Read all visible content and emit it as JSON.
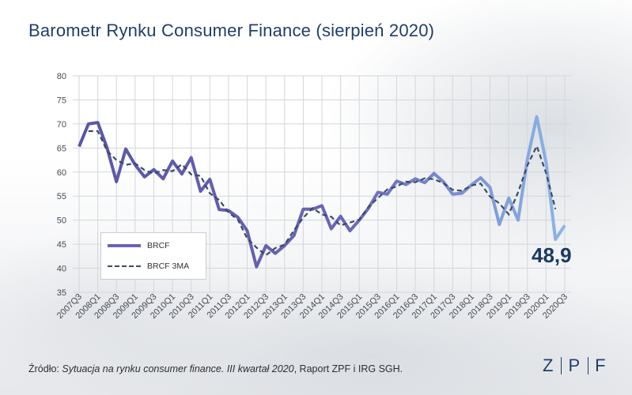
{
  "title": "Barometr Rynku Consumer Finance (sierpień 2020)",
  "source": {
    "prefix": "Źródło: ",
    "italic": "Sytuacja na rynku consumer finance. III kwartał 2020",
    "suffix": ", Raport ZPF i IRG SGH."
  },
  "logo": {
    "letters": [
      "Z",
      "P",
      "F"
    ]
  },
  "callout": "48,9",
  "colors": {
    "brcf_start": "#5b55a8",
    "brcf_end": "#8ab6e8",
    "ma": "#3c4b64",
    "title": "#1f3e6a",
    "grid": "#d3d6db"
  },
  "chart_data": {
    "type": "line",
    "ylim": [
      35,
      80
    ],
    "yticks": [
      35,
      40,
      45,
      50,
      55,
      60,
      65,
      70,
      75,
      80
    ],
    "x": [
      "2007Q3",
      "2007Q4",
      "2008Q1",
      "2008Q2",
      "2008Q3",
      "2008Q4",
      "2009Q1",
      "2009Q2",
      "2009Q3",
      "2009Q4",
      "2010Q1",
      "2010Q2",
      "2010Q3",
      "2010Q4",
      "2011Q1",
      "2011Q2",
      "2011Q3",
      "2011Q4",
      "2012Q1",
      "2012Q2",
      "2012Q3",
      "2012Q4",
      "2013Q1",
      "2013Q2",
      "2013Q3",
      "2013Q4",
      "2014Q1",
      "2014Q2",
      "2014Q3",
      "2014Q4",
      "2015Q1",
      "2015Q2",
      "2015Q3",
      "2015Q4",
      "2016Q1",
      "2016Q2",
      "2016Q3",
      "2016Q4",
      "2017Q1",
      "2017Q2",
      "2017Q3",
      "2017Q4",
      "2018Q1",
      "2018Q2",
      "2018Q3",
      "2018Q4",
      "2019Q1",
      "2019Q2",
      "2019Q3",
      "2019Q4",
      "2020Q1",
      "2020Q2",
      "2020Q3"
    ],
    "xtick_labels": [
      "2007Q3",
      "2008Q1",
      "2008Q3",
      "2009Q1",
      "2009Q3",
      "2010Q1",
      "2010Q3",
      "2011Q1",
      "2011Q3",
      "2012Q1",
      "2012Q3",
      "2013Q1",
      "2013Q3",
      "2014Q1",
      "2014Q3",
      "2015Q1",
      "2015Q3",
      "2016Q1",
      "2016Q3",
      "2017Q1",
      "2017Q3",
      "2018Q1",
      "2018Q3",
      "2019Q1",
      "2019Q3",
      "2020Q1",
      "2020Q3"
    ],
    "series": [
      {
        "name": "BRCF",
        "values": [
          65.3,
          70.0,
          70.3,
          65.0,
          58.0,
          64.8,
          61.5,
          59.0,
          60.5,
          58.6,
          62.3,
          59.6,
          63.0,
          56.0,
          58.5,
          52.2,
          52.0,
          50.6,
          47.8,
          40.3,
          44.7,
          43.1,
          44.7,
          46.8,
          52.3,
          52.3,
          53.0,
          48.2,
          50.8,
          47.8,
          50.0,
          52.5,
          55.8,
          55.4,
          58.1,
          57.4,
          58.6,
          57.8,
          59.7,
          58.0,
          55.4,
          55.6,
          57.3,
          58.8,
          56.8,
          49.1,
          54.6,
          50.0,
          62.7,
          71.5,
          62.0,
          46.0,
          48.9
        ]
      },
      {
        "name": "BRCF 3MA",
        "values": [
          null,
          68.5,
          68.5,
          64.4,
          62.5,
          61.5,
          61.8,
          60.4,
          59.7,
          60.4,
          60.2,
          61.6,
          59.5,
          59.2,
          55.6,
          54.2,
          51.6,
          50.1,
          46.2,
          44.3,
          42.7,
          44.2,
          44.9,
          47.9,
          50.5,
          52.5,
          51.2,
          50.7,
          48.9,
          49.5,
          50.1,
          52.8,
          54.6,
          56.4,
          57.0,
          58.0,
          57.9,
          58.7,
          58.5,
          57.7,
          56.3,
          56.1,
          57.2,
          57.6,
          54.9,
          53.5,
          51.2,
          55.8,
          61.4,
          65.4,
          59.8,
          52.3,
          null
        ]
      }
    ]
  }
}
